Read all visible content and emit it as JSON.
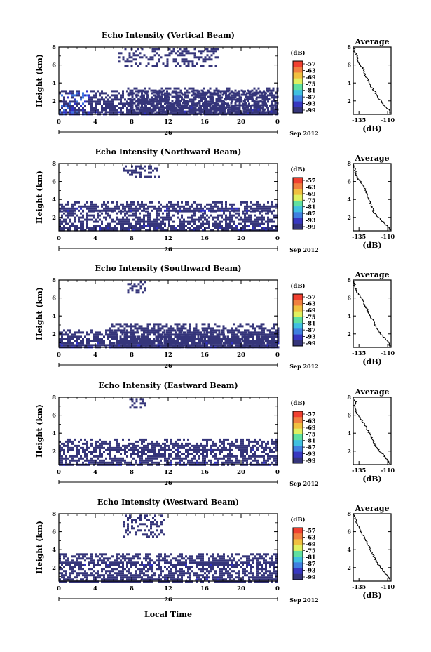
{
  "figure": {
    "x_axis_label": "Local Time",
    "date_day": "26",
    "date_month_year": "Sep 2012",
    "colors": {
      "background": "#ffffff",
      "echo_main": "#35357a",
      "echo_strong": "#3030c8",
      "echo_bright": "#3c74e0",
      "axis": "#000000"
    }
  },
  "chart_data": [
    {
      "type": "heatmap",
      "title": "Echo Intensity (Vertical Beam)",
      "ylabel": "Height (km)",
      "xlabel": "",
      "x_ticks": [
        "0",
        "4",
        "8",
        "12",
        "16",
        "20",
        "0"
      ],
      "xlim": [
        0,
        24
      ],
      "ylim": [
        0.5,
        8
      ],
      "y_ticks": [
        "2",
        "4",
        "6",
        "8"
      ],
      "colorbar": {
        "label": "(dB)",
        "ticks": [
          "-57",
          "-63",
          "-69",
          "-75",
          "-81",
          "-87",
          "-93",
          "-99"
        ],
        "colors": [
          "#f04030",
          "#f08040",
          "#f0c040",
          "#e0f060",
          "#60e0a0",
          "#40c0e0",
          "#4080e0",
          "#3838c0",
          "#35357a"
        ]
      },
      "echo_layers": [
        {
          "x_start": 0,
          "x_end": 24,
          "h_bottom": 0.5,
          "h_top": 3.2
        },
        {
          "x_start": 7.5,
          "x_end": 24,
          "h_bottom": 0.5,
          "h_top": 3.5
        },
        {
          "x_start": 6.5,
          "x_end": 17.5,
          "h_bottom": 6.0,
          "h_top": 7.9
        }
      ],
      "profile": {
        "title": "Average",
        "xlabel": "(dB)",
        "x_ticks": [
          "-135",
          "-110"
        ],
        "xlim": [
          -140,
          -107
        ],
        "y_ticks": [
          "2",
          "4",
          "6",
          "8"
        ],
        "heights": [
          0.6,
          1.0,
          1.5,
          2.0,
          2.5,
          3.0,
          3.5,
          4.0,
          4.5,
          5.0,
          5.5,
          6.0,
          6.5,
          7.0,
          7.5,
          7.9
        ],
        "values": [
          -108,
          -109,
          -113,
          -116,
          -119,
          -121,
          -124,
          -126,
          -128,
          -130,
          -131,
          -134,
          -136,
          -137,
          -139,
          -139
        ]
      }
    },
    {
      "type": "heatmap",
      "title": "Echo Intensity (Northward Beam)",
      "ylabel": "Height (km)",
      "xlabel": "",
      "x_ticks": [
        "0",
        "4",
        "8",
        "12",
        "16",
        "20",
        "0"
      ],
      "xlim": [
        0,
        24
      ],
      "ylim": [
        0.5,
        8
      ],
      "y_ticks": [
        "2",
        "4",
        "6",
        "8"
      ],
      "colorbar": {
        "label": "(dB)",
        "ticks": [
          "-57",
          "-63",
          "-69",
          "-75",
          "-81",
          "-87",
          "-93",
          "-99"
        ],
        "colors": [
          "#f04030",
          "#f08040",
          "#f0c040",
          "#e0f060",
          "#60e0a0",
          "#40c0e0",
          "#4080e0",
          "#3838c0",
          "#35357a"
        ]
      },
      "echo_layers": [
        {
          "x_start": 0,
          "x_end": 24,
          "h_bottom": 0.5,
          "h_top": 2.8
        },
        {
          "x_start": 0,
          "x_end": 24,
          "h_bottom": 2.8,
          "h_top": 3.8
        },
        {
          "x_start": 7.0,
          "x_end": 11.0,
          "h_bottom": 6.5,
          "h_top": 7.8
        }
      ],
      "profile": {
        "title": "Average",
        "xlabel": "(dB)",
        "x_ticks": [
          "-135",
          "-110"
        ],
        "xlim": [
          -140,
          -107
        ],
        "y_ticks": [
          "2",
          "4",
          "6",
          "8"
        ],
        "heights": [
          0.6,
          1.0,
          1.5,
          2.0,
          2.5,
          3.0,
          3.5,
          4.0,
          4.5,
          5.0,
          5.5,
          6.0,
          6.5,
          7.0,
          7.5,
          7.9
        ],
        "values": [
          -108,
          -110,
          -114,
          -118,
          -122,
          -123,
          -125,
          -126,
          -128,
          -129,
          -131,
          -134,
          -137,
          -138,
          -139,
          -140
        ]
      }
    },
    {
      "type": "heatmap",
      "title": "Echo Intensity (Southward Beam)",
      "ylabel": "Height (km)",
      "xlabel": "",
      "x_ticks": [
        "0",
        "4",
        "8",
        "12",
        "16",
        "20",
        "0"
      ],
      "xlim": [
        0,
        24
      ],
      "ylim": [
        0.5,
        8
      ],
      "y_ticks": [
        "2",
        "4",
        "6",
        "8"
      ],
      "colorbar": {
        "label": "(dB)",
        "ticks": [
          "-57",
          "-63",
          "-69",
          "-75",
          "-81",
          "-87",
          "-93",
          "-99"
        ],
        "colors": [
          "#f04030",
          "#f08040",
          "#f0c040",
          "#e0f060",
          "#60e0a0",
          "#40c0e0",
          "#4080e0",
          "#3838c0",
          "#35357a"
        ]
      },
      "echo_layers": [
        {
          "x_start": 0,
          "x_end": 24,
          "h_bottom": 0.5,
          "h_top": 2.5
        },
        {
          "x_start": 5.5,
          "x_end": 24,
          "h_bottom": 0.5,
          "h_top": 3.2
        },
        {
          "x_start": 7.5,
          "x_end": 9.5,
          "h_bottom": 6.5,
          "h_top": 7.9
        }
      ],
      "profile": {
        "title": "Average",
        "xlabel": "(dB)",
        "x_ticks": [
          "-135",
          "-110"
        ],
        "xlim": [
          -140,
          -107
        ],
        "y_ticks": [
          "2",
          "4",
          "6",
          "8"
        ],
        "heights": [
          0.6,
          1.0,
          1.5,
          2.0,
          2.5,
          3.0,
          3.5,
          4.0,
          4.5,
          5.0,
          5.5,
          6.0,
          6.5,
          7.0,
          7.5,
          7.9
        ],
        "values": [
          -108,
          -109,
          -112,
          -116,
          -119,
          -121,
          -123,
          -125,
          -127,
          -129,
          -131,
          -133,
          -136,
          -138,
          -139,
          -140
        ]
      }
    },
    {
      "type": "heatmap",
      "title": "Echo Intensity (Eastward Beam)",
      "ylabel": "Height (km)",
      "xlabel": "",
      "x_ticks": [
        "0",
        "4",
        "8",
        "12",
        "16",
        "20",
        "0"
      ],
      "xlim": [
        0,
        24
      ],
      "ylim": [
        0.5,
        8
      ],
      "y_ticks": [
        "2",
        "4",
        "6",
        "8"
      ],
      "colorbar": {
        "label": "(dB)",
        "ticks": [
          "-57",
          "-63",
          "-69",
          "-75",
          "-81",
          "-87",
          "-93",
          "-99"
        ],
        "colors": [
          "#f04030",
          "#f08040",
          "#f0c040",
          "#e0f060",
          "#60e0a0",
          "#40c0e0",
          "#4080e0",
          "#3838c0",
          "#35357a"
        ]
      },
      "echo_layers": [
        {
          "x_start": 0,
          "x_end": 24,
          "h_bottom": 0.5,
          "h_top": 2.0
        },
        {
          "x_start": 0,
          "x_end": 24,
          "h_bottom": 2.0,
          "h_top": 3.4
        },
        {
          "x_start": 7.5,
          "x_end": 9.5,
          "h_bottom": 6.8,
          "h_top": 7.9
        }
      ],
      "profile": {
        "title": "Average",
        "xlabel": "(dB)",
        "x_ticks": [
          "-135",
          "-110"
        ],
        "xlim": [
          -140,
          -107
        ],
        "y_ticks": [
          "2",
          "4",
          "6",
          "8"
        ],
        "heights": [
          0.6,
          1.0,
          1.5,
          2.0,
          2.5,
          3.0,
          3.5,
          4.0,
          4.5,
          5.0,
          5.5,
          6.0,
          6.5,
          7.0,
          7.5,
          7.9
        ],
        "values": [
          -108,
          -110,
          -113,
          -117,
          -120,
          -122,
          -124,
          -126,
          -128,
          -130,
          -133,
          -136,
          -138,
          -139,
          -138,
          -140
        ]
      }
    },
    {
      "type": "heatmap",
      "title": "Echo Intensity (Westward Beam)",
      "ylabel": "Height (km)",
      "xlabel": "Local Time",
      "x_ticks": [
        "0",
        "4",
        "8",
        "12",
        "16",
        "20",
        "0"
      ],
      "xlim": [
        0,
        24
      ],
      "ylim": [
        0.5,
        8
      ],
      "y_ticks": [
        "2",
        "4",
        "6",
        "8"
      ],
      "colorbar": {
        "label": "(dB)",
        "ticks": [
          "-57",
          "-63",
          "-69",
          "-75",
          "-81",
          "-87",
          "-93",
          "-99"
        ],
        "colors": [
          "#f04030",
          "#f08040",
          "#f0c040",
          "#e0f060",
          "#60e0a0",
          "#40c0e0",
          "#4080e0",
          "#3838c0",
          "#35357a"
        ]
      },
      "echo_layers": [
        {
          "x_start": 0,
          "x_end": 24,
          "h_bottom": 0.5,
          "h_top": 2.2
        },
        {
          "x_start": 0,
          "x_end": 24,
          "h_bottom": 2.2,
          "h_top": 3.6
        },
        {
          "x_start": 7.0,
          "x_end": 11.5,
          "h_bottom": 5.5,
          "h_top": 7.9
        }
      ],
      "profile": {
        "title": "Average",
        "xlabel": "(dB)",
        "x_ticks": [
          "-135",
          "-110"
        ],
        "xlim": [
          -140,
          -107
        ],
        "y_ticks": [
          "2",
          "4",
          "6",
          "8"
        ],
        "heights": [
          0.6,
          1.0,
          1.5,
          2.0,
          2.5,
          3.0,
          3.5,
          4.0,
          4.5,
          5.0,
          5.5,
          6.0,
          6.5,
          7.0,
          7.5,
          7.9
        ],
        "values": [
          -108,
          -110,
          -113,
          -116,
          -119,
          -121,
          -123,
          -125,
          -127,
          -129,
          -131,
          -133,
          -135,
          -137,
          -138,
          -140
        ]
      }
    }
  ]
}
